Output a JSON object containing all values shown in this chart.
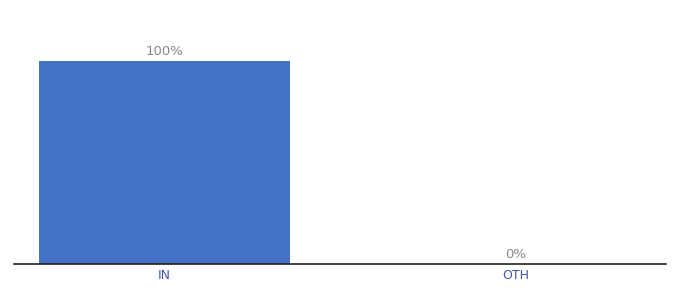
{
  "categories": [
    "IN",
    "OTH"
  ],
  "values": [
    100,
    0
  ],
  "bar_labels": [
    "100%",
    "0%"
  ],
  "bar_width": 0.5,
  "x_positions": [
    0.3,
    1.0
  ],
  "xlim": [
    0.0,
    1.3
  ],
  "ylim": [
    0,
    118
  ],
  "background_color": "#ffffff",
  "bar_label_color": "#888888",
  "axis_label_color": "#4455aa",
  "label_fontsize": 9.5,
  "tick_fontsize": 9,
  "spine_color": "#222222",
  "bar_color": "#4472c4"
}
